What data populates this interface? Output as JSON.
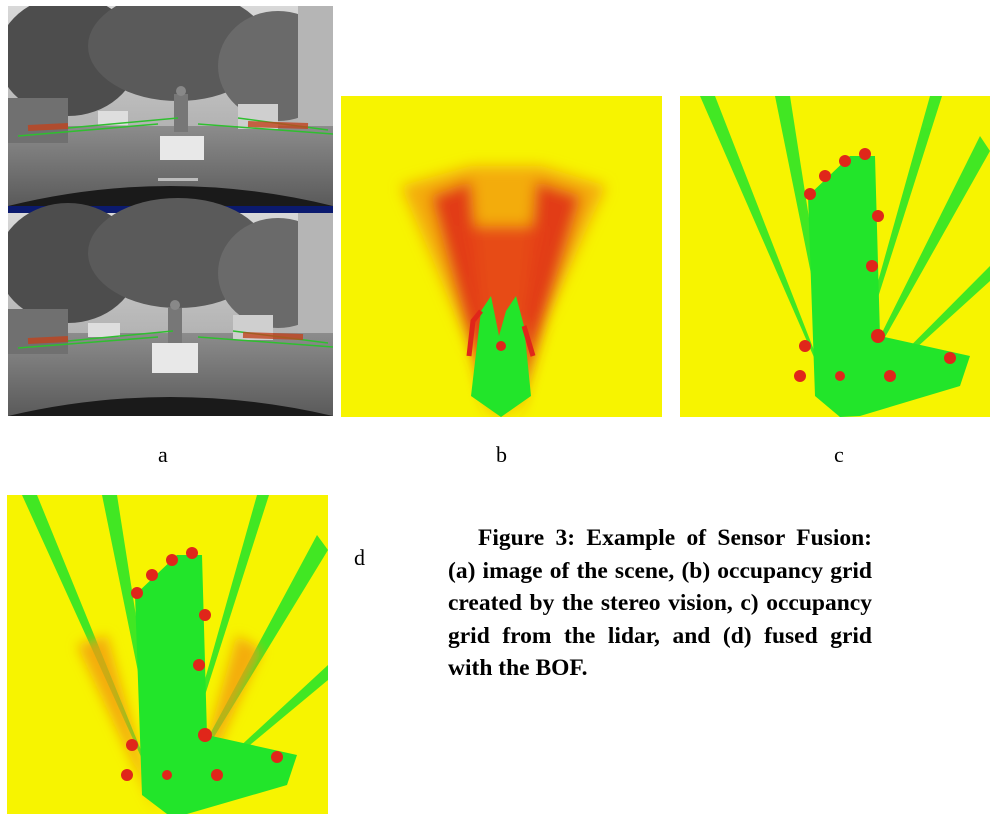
{
  "panels": [
    {
      "id": "a",
      "label": "a"
    },
    {
      "id": "b",
      "label": "b"
    },
    {
      "id": "c",
      "label": "c"
    },
    {
      "id": "d",
      "label": "d"
    }
  ],
  "caption": "Figure 3:  Example of Sensor Fusion:  (a) image of the scene,  (b) occupancy grid created by the stereo vision,  c) occupancy grid from the lidar,  and  (d) fused grid with the BOF.",
  "colors": {
    "unknown": "#f7f400",
    "free": "#22e52a",
    "occupied": "#e0261a",
    "separator": "#0b1a6e"
  }
}
